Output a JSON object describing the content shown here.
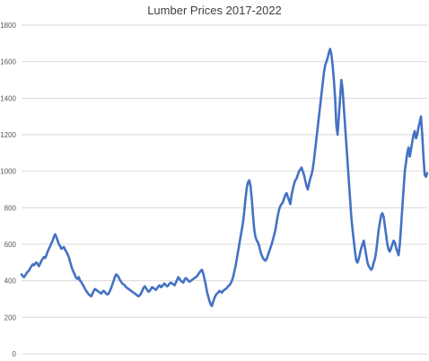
{
  "chart_data": {
    "type": "line",
    "title": "Lumber Prices 2017-2022",
    "xlabel": "",
    "ylabel": "",
    "ylim": [
      0,
      1800
    ],
    "yticks": [
      0,
      200,
      400,
      600,
      800,
      1000,
      1200,
      1400,
      1600,
      1800
    ],
    "grid": true,
    "legend": "none",
    "x_axis_labels_visible": false,
    "colors": {
      "line": "#4472c4",
      "grid": "#d9d9d9",
      "text": "#595959"
    },
    "series": [
      {
        "values": [
          435,
          425,
          420,
          430,
          440,
          450,
          455,
          470,
          480,
          490,
          485,
          495,
          500,
          490,
          480,
          495,
          510,
          520,
          530,
          525,
          540,
          560,
          575,
          590,
          605,
          620,
          640,
          655,
          640,
          620,
          600,
          590,
          575,
          580,
          585,
          570,
          560,
          545,
          530,
          505,
          480,
          460,
          445,
          430,
          415,
          410,
          420,
          400,
          395,
          380,
          370,
          355,
          345,
          335,
          325,
          320,
          315,
          330,
          345,
          355,
          350,
          345,
          340,
          335,
          330,
          340,
          345,
          338,
          330,
          325,
          330,
          345,
          360,
          380,
          400,
          420,
          435,
          430,
          420,
          405,
          395,
          385,
          380,
          375,
          365,
          360,
          355,
          350,
          345,
          340,
          335,
          330,
          325,
          320,
          315,
          320,
          330,
          345,
          360,
          370,
          360,
          350,
          340,
          345,
          355,
          365,
          360,
          355,
          350,
          360,
          370,
          375,
          365,
          370,
          380,
          385,
          375,
          370,
          375,
          385,
          390,
          385,
          380,
          375,
          390,
          405,
          420,
          410,
          400,
          395,
          390,
          405,
          415,
          410,
          400,
          395,
          400,
          405,
          410,
          415,
          420,
          425,
          435,
          445,
          455,
          460,
          440,
          410,
          380,
          340,
          315,
          290,
          270,
          262,
          285,
          305,
          320,
          330,
          335,
          345,
          340,
          335,
          345,
          350,
          355,
          360,
          370,
          375,
          385,
          400,
          420,
          450,
          480,
          520,
          560,
          600,
          640,
          680,
          720,
          780,
          850,
          910,
          940,
          950,
          920,
          850,
          760,
          680,
          640,
          620,
          610,
          590,
          560,
          540,
          525,
          515,
          510,
          520,
          540,
          560,
          580,
          600,
          625,
          650,
          680,
          720,
          760,
          790,
          810,
          820,
          830,
          850,
          870,
          880,
          860,
          840,
          820,
          870,
          900,
          930,
          950,
          960,
          980,
          1000,
          1010,
          1020,
          1000,
          980,
          950,
          920,
          900,
          930,
          960,
          980,
          1010,
          1060,
          1120,
          1180,
          1240,
          1300,
          1360,
          1420,
          1480,
          1540,
          1580,
          1600,
          1620,
          1650,
          1670,
          1640,
          1580,
          1500,
          1400,
          1250,
          1200,
          1300,
          1400,
          1500,
          1450,
          1350,
          1250,
          1150,
          1050,
          950,
          850,
          750,
          680,
          620,
          560,
          510,
          500,
          520,
          550,
          580,
          600,
          620,
          580,
          540,
          500,
          480,
          470,
          460,
          470,
          500,
          520,
          560,
          620,
          680,
          720,
          760,
          770,
          750,
          700,
          650,
          600,
          570,
          560,
          580,
          600,
          620,
          610,
          580,
          560,
          540,
          600,
          700,
          800,
          900,
          1000,
          1050,
          1100,
          1130,
          1080,
          1120,
          1160,
          1200,
          1220,
          1180,
          1200,
          1240,
          1270,
          1300,
          1200,
          1080,
          980,
          970,
          990
        ]
      }
    ]
  }
}
